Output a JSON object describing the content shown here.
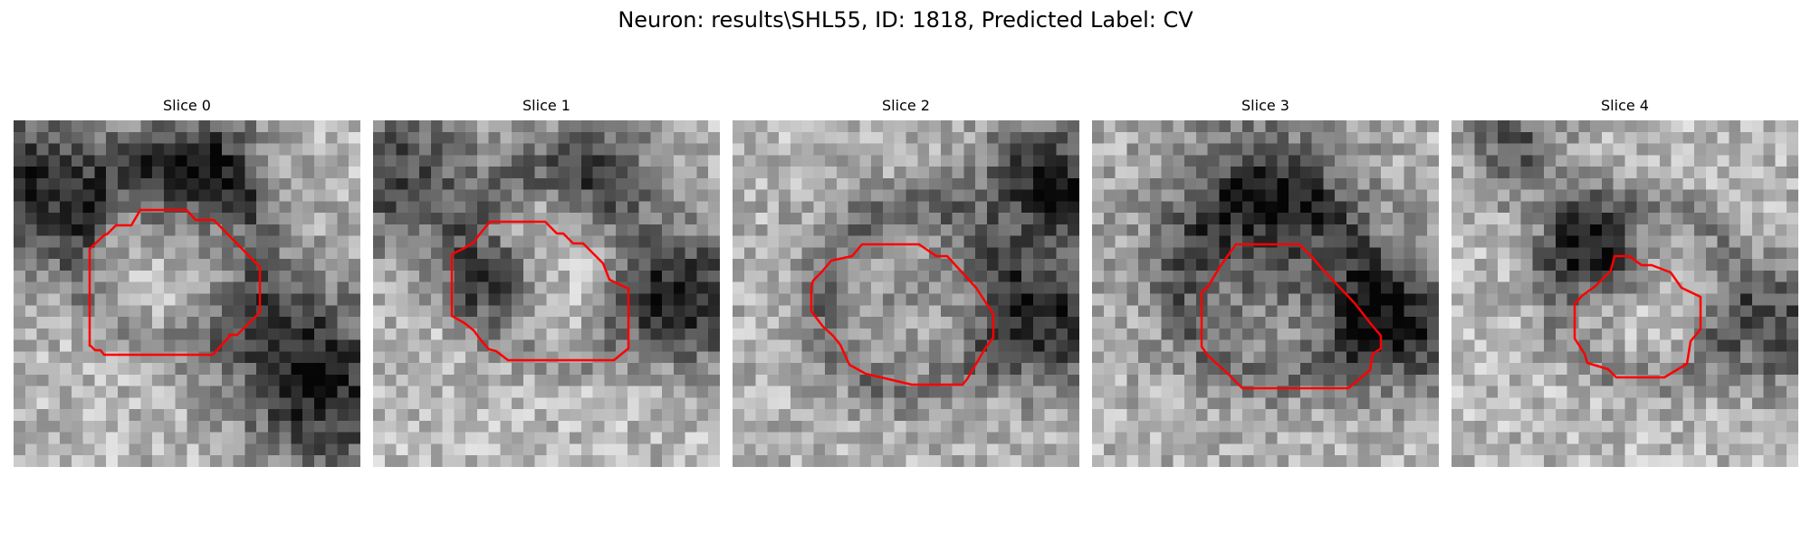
{
  "figure": {
    "title": "Neuron: results\\SHL55, ID: 1818, Predicted Label: CV"
  },
  "panels": [
    {
      "title": "Slice 0"
    },
    {
      "title": "Slice 1"
    },
    {
      "title": "Slice 2"
    },
    {
      "title": "Slice 3"
    },
    {
      "title": "Slice 4"
    }
  ],
  "style": {
    "contour_color": "#ff0000",
    "colormap": "gray"
  }
}
